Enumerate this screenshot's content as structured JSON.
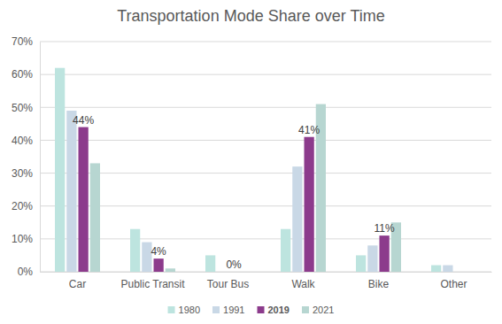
{
  "chart_data": {
    "type": "bar",
    "title": "Transportation Mode Share over Time",
    "categories": [
      "Car",
      "Public Transit",
      "Tour Bus",
      "Walk",
      "Bike",
      "Other"
    ],
    "series": [
      {
        "name": "1980",
        "color": "#bde4df",
        "values": [
          62,
          13,
          5,
          13,
          5,
          2
        ]
      },
      {
        "name": "1991",
        "color": "#c9d8e6",
        "values": [
          49,
          9,
          null,
          32,
          8,
          2
        ]
      },
      {
        "name": "2019",
        "color": "#8c3b8c",
        "values": [
          44,
          4,
          0,
          41,
          11,
          null
        ],
        "data_labels": true,
        "value_labels": [
          "44%",
          "4%",
          "0%",
          "41%",
          "11%",
          null
        ]
      },
      {
        "name": "2021",
        "color": "#b7d6d1",
        "values": [
          33,
          1,
          null,
          51,
          15,
          null
        ]
      }
    ],
    "ylim": [
      0,
      70
    ],
    "yticks": [
      {
        "value": 0,
        "label": "0%"
      },
      {
        "value": 10,
        "label": "10%"
      },
      {
        "value": 20,
        "label": "20%"
      },
      {
        "value": 30,
        "label": "30%"
      },
      {
        "value": 40,
        "label": "40%"
      },
      {
        "value": 50,
        "label": "50%"
      },
      {
        "value": 60,
        "label": "60%"
      },
      {
        "value": 70,
        "label": "70%"
      }
    ],
    "grid": true,
    "legend": "bottom"
  }
}
